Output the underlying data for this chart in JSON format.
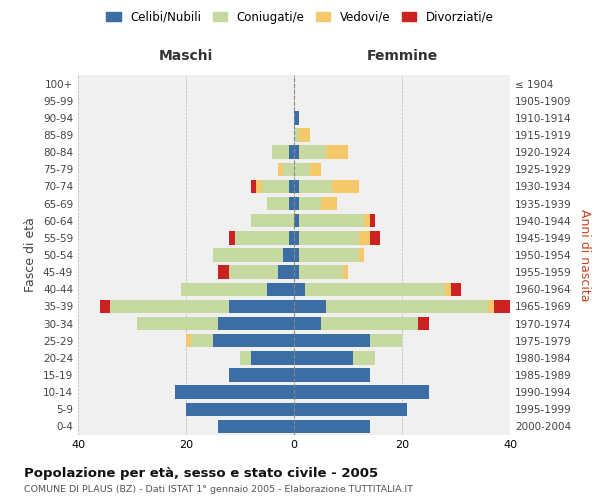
{
  "age_groups": [
    "0-4",
    "5-9",
    "10-14",
    "15-19",
    "20-24",
    "25-29",
    "30-34",
    "35-39",
    "40-44",
    "45-49",
    "50-54",
    "55-59",
    "60-64",
    "65-69",
    "70-74",
    "75-79",
    "80-84",
    "85-89",
    "90-94",
    "95-99",
    "100+"
  ],
  "birth_years": [
    "2000-2004",
    "1995-1999",
    "1990-1994",
    "1985-1989",
    "1980-1984",
    "1975-1979",
    "1970-1974",
    "1965-1969",
    "1960-1964",
    "1955-1959",
    "1950-1954",
    "1945-1949",
    "1940-1944",
    "1935-1939",
    "1930-1934",
    "1925-1929",
    "1920-1924",
    "1915-1919",
    "1910-1914",
    "1905-1909",
    "≤ 1904"
  ],
  "males": {
    "celibe": [
      14,
      20,
      22,
      12,
      8,
      15,
      14,
      12,
      5,
      3,
      2,
      1,
      0,
      1,
      1,
      0,
      1,
      0,
      0,
      0,
      0
    ],
    "coniugato": [
      0,
      0,
      0,
      0,
      2,
      4,
      15,
      22,
      16,
      9,
      13,
      10,
      8,
      4,
      5,
      2,
      3,
      0,
      0,
      0,
      0
    ],
    "vedovo": [
      0,
      0,
      0,
      0,
      0,
      1,
      0,
      0,
      0,
      0,
      0,
      0,
      0,
      0,
      1,
      1,
      0,
      0,
      0,
      0,
      0
    ],
    "divorziato": [
      0,
      0,
      0,
      0,
      0,
      0,
      0,
      2,
      0,
      2,
      0,
      1,
      0,
      0,
      1,
      0,
      0,
      0,
      0,
      0,
      0
    ]
  },
  "females": {
    "nubile": [
      14,
      21,
      25,
      14,
      11,
      14,
      5,
      6,
      2,
      1,
      1,
      1,
      1,
      1,
      1,
      0,
      1,
      0,
      1,
      0,
      0
    ],
    "coniugata": [
      0,
      0,
      0,
      0,
      4,
      6,
      18,
      30,
      26,
      8,
      11,
      11,
      12,
      4,
      6,
      3,
      5,
      1,
      0,
      0,
      0
    ],
    "vedova": [
      0,
      0,
      0,
      0,
      0,
      0,
      0,
      1,
      1,
      1,
      1,
      2,
      1,
      3,
      5,
      2,
      4,
      2,
      0,
      0,
      0
    ],
    "divorziata": [
      0,
      0,
      0,
      0,
      0,
      0,
      2,
      3,
      2,
      0,
      0,
      2,
      1,
      0,
      0,
      0,
      0,
      0,
      0,
      0,
      0
    ]
  },
  "colors": {
    "celibe": "#3a6ea5",
    "coniugato": "#c5d9a0",
    "vedovo": "#f5c96a",
    "divorziato": "#cc2222"
  },
  "xlim": 40,
  "title": "Popolazione per età, sesso e stato civile - 2005",
  "subtitle": "COMUNE DI PLAUS (BZ) - Dati ISTAT 1° gennaio 2005 - Elaborazione TUTTITALIA.IT",
  "xlabel_left": "Maschi",
  "xlabel_right": "Femmine",
  "ylabel_left": "Fasce di età",
  "ylabel_right": "Anni di nascita",
  "legend_labels": [
    "Celibi/Nubili",
    "Coniugati/e",
    "Vedovi/e",
    "Divorziati/e"
  ],
  "background_color": "#f0f0f0"
}
